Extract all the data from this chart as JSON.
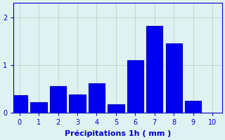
{
  "bar_left_edges": [
    0,
    0.5,
    1,
    1.5,
    2,
    2.5,
    3,
    3.5,
    4,
    4.5,
    5,
    5.5,
    6,
    6.5,
    7,
    7.5,
    8,
    8.5,
    9
  ],
  "bar_heights": [
    0.37,
    0.0,
    0.21,
    0.0,
    0.55,
    0.0,
    0.38,
    0.0,
    0.62,
    0.0,
    0.17,
    0.0,
    1.1,
    1.1,
    1.82,
    1.45,
    1.45,
    0.25,
    0.0
  ],
  "categories": [
    0,
    1,
    2,
    3,
    4,
    5,
    6,
    7,
    8,
    9
  ],
  "values": [
    0.37,
    0.21,
    0.55,
    0.38,
    0.62,
    0.17,
    1.1,
    1.82,
    1.45,
    0.25
  ],
  "bar_color": "#0000ee",
  "bar_edge_color": "#0000bb",
  "background_color": "#dff2f2",
  "xlabel": "Précipitations 1h ( mm )",
  "ylim": [
    0,
    2.3
  ],
  "xlim": [
    -0.3,
    10.5
  ],
  "yticks": [
    0,
    1,
    2
  ],
  "xticks": [
    0,
    1,
    2,
    3,
    4,
    5,
    6,
    7,
    8,
    9,
    10
  ],
  "grid_color": "#aaaaaa",
  "tick_color": "#0000cc",
  "label_color": "#0000cc",
  "label_fontsize": 8,
  "tick_fontsize": 7
}
